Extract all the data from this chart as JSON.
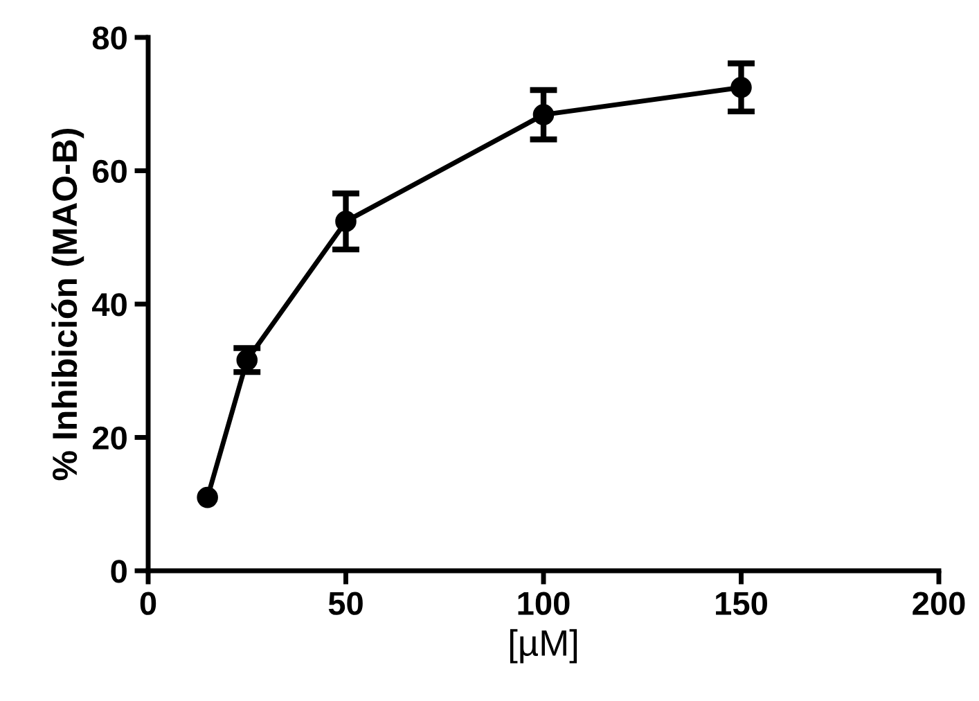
{
  "chart_data": {
    "type": "line",
    "xlabel": "[µM]",
    "ylabel": "% Inhibición (MAO-B)",
    "x": [
      15,
      25,
      50,
      100,
      150
    ],
    "series": [
      {
        "color": "#000000",
        "values": [
          11,
          31.6,
          52.4,
          68.4,
          72.5
        ],
        "errors": [
          null,
          1.8,
          4.2,
          3.7,
          3.6
        ]
      }
    ],
    "xlim": [
      0,
      200
    ],
    "xticks": [
      0,
      50,
      100,
      150,
      200
    ],
    "ylim": [
      0,
      80
    ],
    "yticks": [
      0,
      20,
      40,
      60,
      80
    ],
    "marker": "circle",
    "line_style": "solid",
    "grid": false,
    "legend": false
  }
}
